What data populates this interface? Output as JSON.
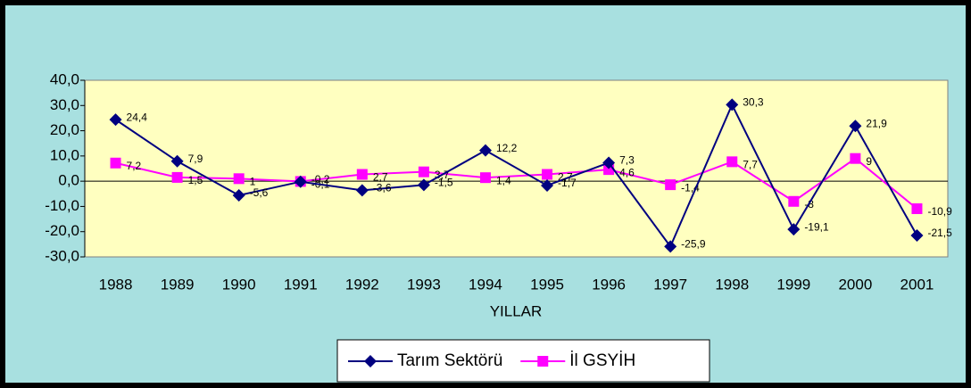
{
  "chart_data": {
    "type": "line",
    "xlabel": "YILLAR",
    "categories": [
      "1988",
      "1989",
      "1990",
      "1991",
      "1992",
      "1993",
      "1994",
      "1995",
      "1996",
      "1997",
      "1998",
      "1999",
      "2000",
      "2001"
    ],
    "series": [
      {
        "name": "Tarım Sektörü",
        "color": "#000080",
        "marker": "diamond",
        "values": [
          24.4,
          7.9,
          -5.6,
          -0.2,
          -3.6,
          -1.5,
          12.2,
          -1.7,
          7.3,
          -25.9,
          30.3,
          -19.1,
          21.9,
          -21.5
        ],
        "value_labels": [
          "24,4",
          "7,9",
          "-5,6",
          "-0,2",
          "-3,6",
          "-1,5",
          "12,2",
          "-1,7",
          "7,3",
          "-25,9",
          "30,3",
          "-19,1",
          "21,9",
          "-21,5"
        ]
      },
      {
        "name": "İl GSYİH",
        "color": "#ff00ff",
        "marker": "square",
        "values": [
          7.2,
          1.5,
          1,
          -0.1,
          2.7,
          3.7,
          1.4,
          2.7,
          4.6,
          -1.4,
          7.7,
          -8,
          9,
          -10.9
        ],
        "value_labels": [
          "7,2",
          "1,5",
          "1",
          "-0,1",
          "2,7",
          "3,7",
          "1,4",
          "2,7",
          "4,6",
          "-1,4",
          "7,7",
          "-8",
          "9",
          "-10,9"
        ]
      }
    ],
    "ylim": [
      -30,
      40
    ],
    "yticks": [
      {
        "value": -30,
        "label": "-30,0"
      },
      {
        "value": -20,
        "label": "-20,0"
      },
      {
        "value": -10,
        "label": "-10,0"
      },
      {
        "value": 0,
        "label": "0,0"
      },
      {
        "value": 10,
        "label": "10,0"
      },
      {
        "value": 20,
        "label": "20,0"
      },
      {
        "value": 30,
        "label": "30,0"
      },
      {
        "value": 40,
        "label": "40,0"
      }
    ],
    "legend": "bottom"
  }
}
